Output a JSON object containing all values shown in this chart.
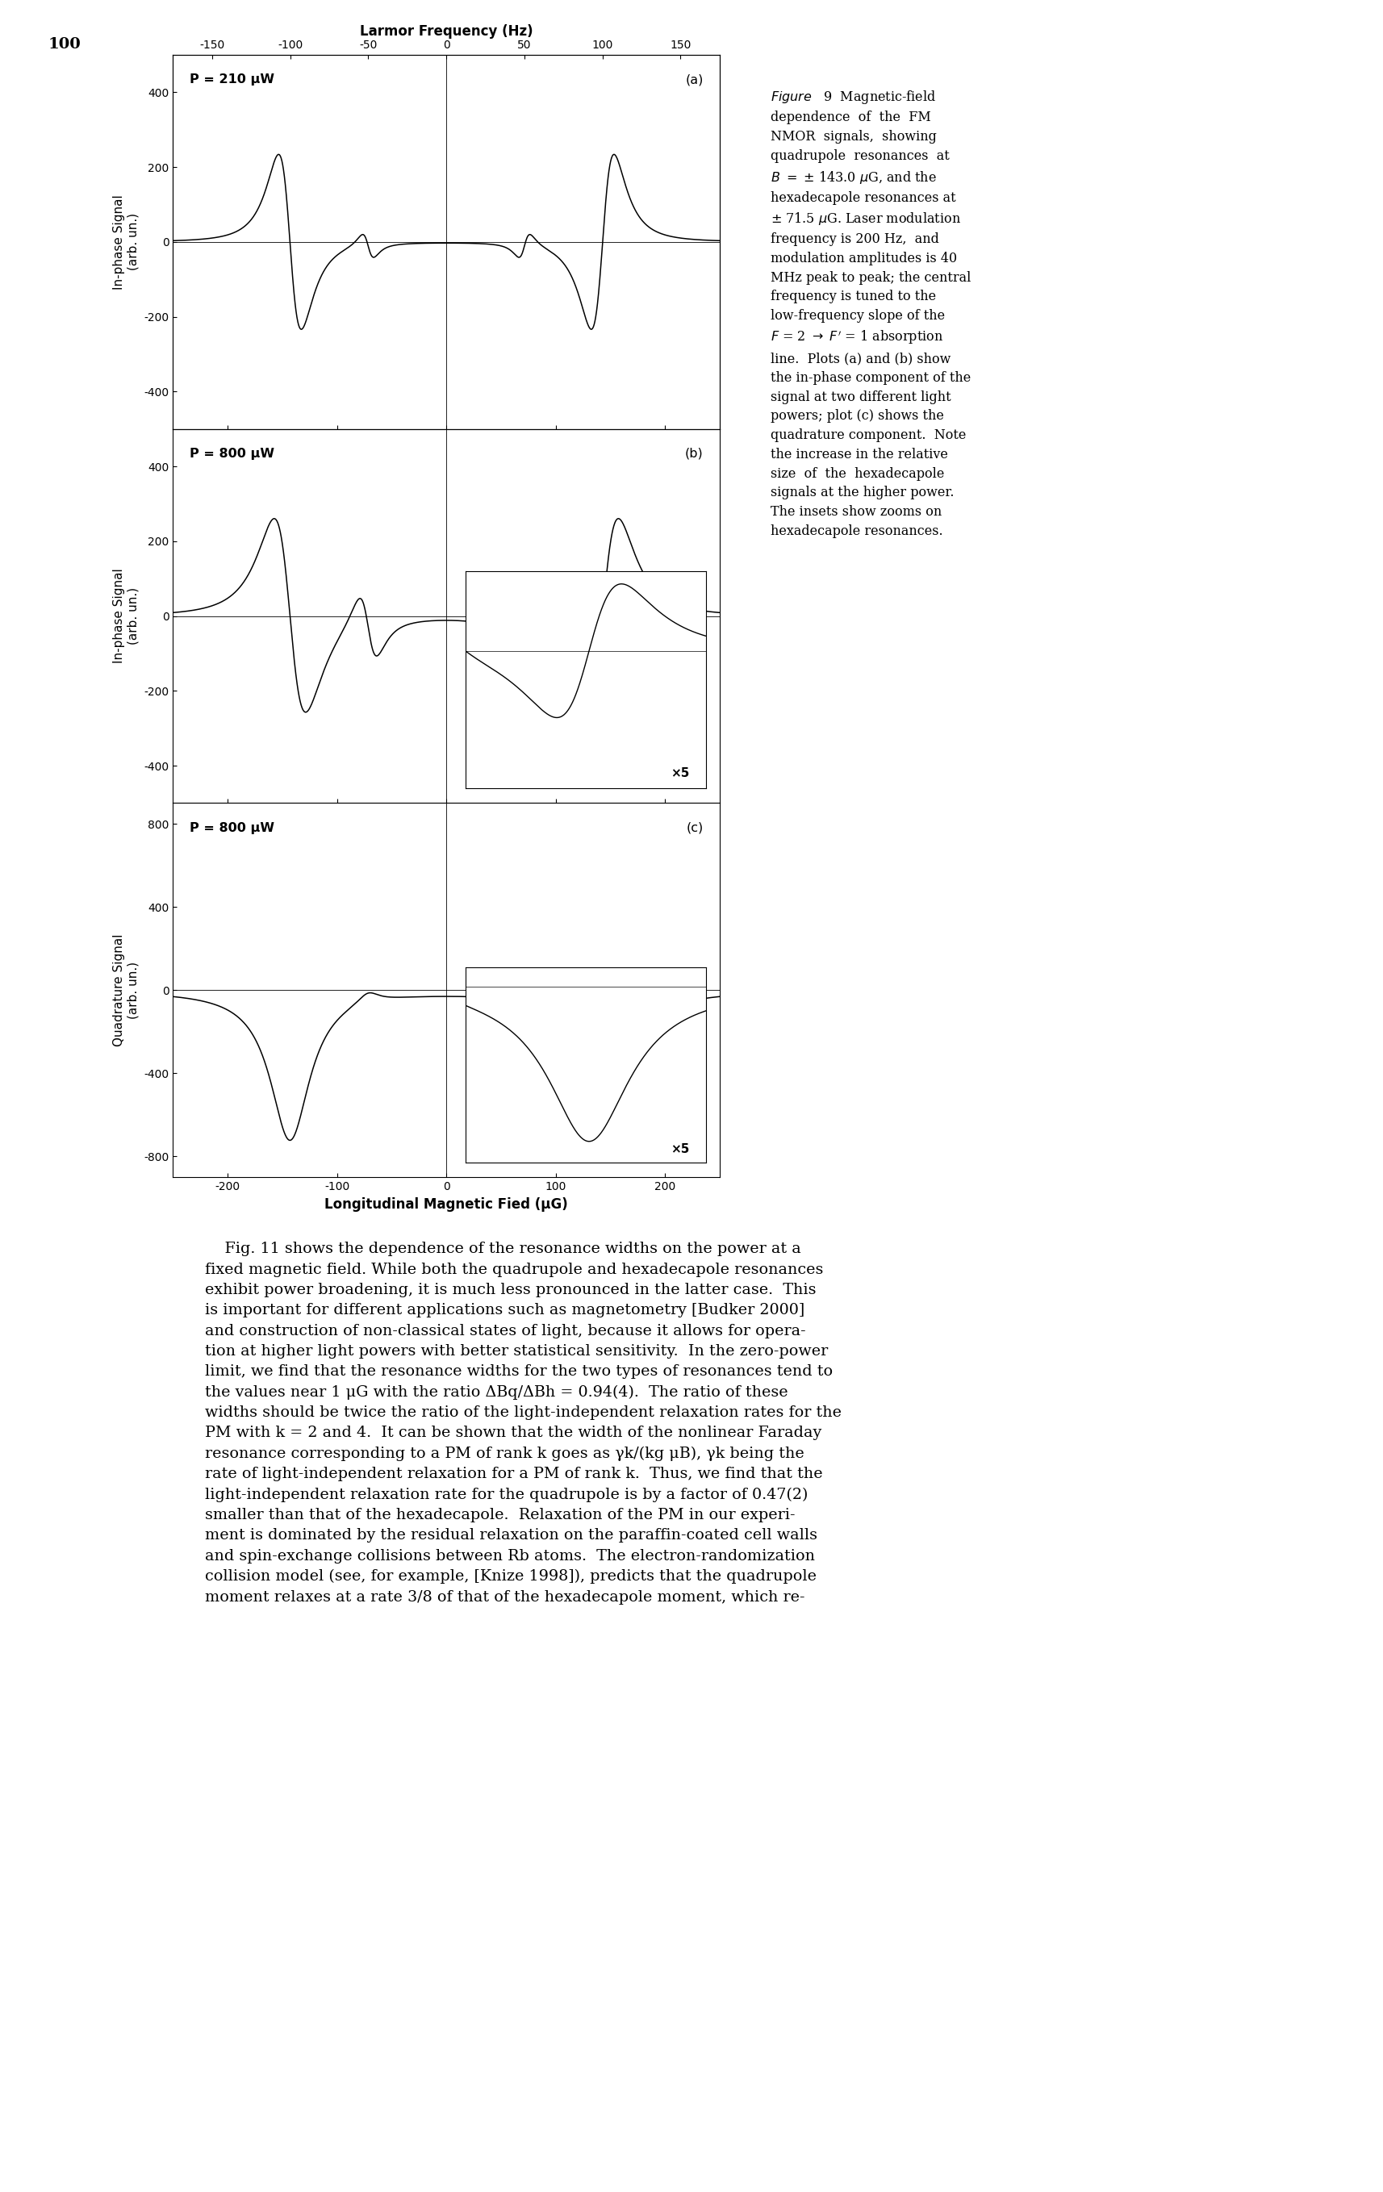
{
  "page_number": "100",
  "top_axis_label": "Larmor Frequency (Hz)",
  "top_ticks": [
    -150,
    -100,
    -50,
    0,
    50,
    100,
    150
  ],
  "bottom_axis_label": "Longitudinal Magnetic Fied (μG)",
  "bottom_ticks": [
    -200,
    -100,
    0,
    100,
    200
  ],
  "panel_a_label": "P = 210 μW",
  "panel_b_label": "P = 800 μW",
  "panel_c_label": "P = 800 μW",
  "panel_labels": [
    "(a)",
    "(b)",
    "(c)"
  ],
  "ylabel_a": "In-phase Signal\n(arb. un.)",
  "ylabel_b": "In-phase Signal\n(arb. un.)",
  "ylabel_c": "Quadrature Signal\n(arb. un.)",
  "ylim_a": [
    -500,
    500
  ],
  "ylim_b": [
    -500,
    500
  ],
  "ylim_c": [
    -900,
    900
  ],
  "yticks_a": [
    -400,
    -200,
    0,
    200,
    400
  ],
  "yticks_b": [
    -400,
    -200,
    0,
    200,
    400
  ],
  "yticks_c": [
    -800,
    -400,
    0,
    400,
    800
  ],
  "xlim": [
    -250,
    250
  ],
  "inset_label": "×5",
  "caption_line1_italic": "Figure",
  "caption_line1_num": "   9  ",
  "caption_rest": "Magnetic-field dependence of the FM NMOR signals, showing quadrupole resonances at B = ± 143.0 μG, and the hexadecapole resonances at ± 71.5 μG. Laser modulation frequency is 200 Hz, and modulation amplitudes is 40 MHz peak to peak; the central frequency is tuned to the low-frequency slope of the F = 2 → F’ = 1 absorption line. Plots (a) and (b) show the in-phase component of the signal at two different light powers; plot (c) shows the quadrature component. Note the increase in the relative size of the hexadecapole signals at the higher power. The insets show zooms on hexadecapole resonances.",
  "body_text_lines": [
    "    Fig. 11 shows the dependence of the resonance widths on the power at a",
    "fixed magnetic field. While both the quadrupole and hexadecapole resonances",
    "exhibit power broadening, it is much less pronounced in the latter case.  This",
    "is important for different applications such as magnetometry [Budker 2000]",
    "and construction of non-classical states of light, because it allows for opera-",
    "tion at higher light powers with better statistical sensitivity.  In the zero-power",
    "limit, we find that the resonance widths for the two types of resonances tend to",
    "the values near 1 μG with the ratio ΔBq/ΔBh = 0.94(4).  The ratio of these",
    "widths should be twice the ratio of the light-independent relaxation rates for the",
    "PM with k = 2 and 4.  It can be shown that the width of the nonlinear Faraday",
    "resonance corresponding to a PM of rank k goes as γk/(kg μB), γk being the",
    "rate of light-independent relaxation for a PM of rank k.  Thus, we find that the",
    "light-independent relaxation rate for the quadrupole is by a factor of 0.47(2)",
    "smaller than that of the hexadecapole.  Relaxation of the PM in our experi-",
    "ment is dominated by the residual relaxation on the paraffin-coated cell walls",
    "and spin-exchange collisions between Rb atoms.  The electron-randomization",
    "collision model (see, for example, [Knize 1998]), predicts that the quadrupole",
    "moment relaxes at a rate 3/8 of that of the hexadecapole moment, which re-"
  ],
  "background_color": "#ffffff",
  "line_color": "#000000"
}
